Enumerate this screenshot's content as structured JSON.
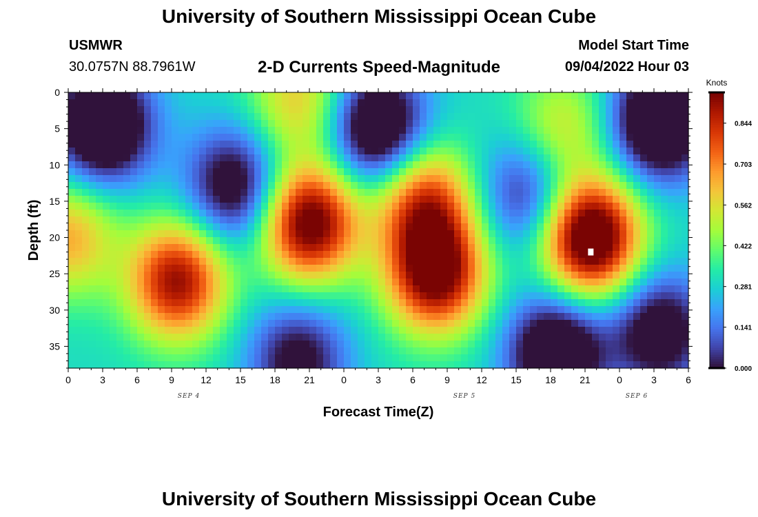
{
  "header": {
    "title": "University of Southern Mississippi Ocean Cube",
    "station_code": "USMWR",
    "station_coords": "30.0757N  88.7961W",
    "subtitle": "2-D Currents Speed-Magnitude",
    "model_start_label": "Model Start Time",
    "model_start_value": "09/04/2022 Hour 03"
  },
  "footer": {
    "title": "University of Southern Mississippi Ocean Cube"
  },
  "chart_data": {
    "type": "heatmap",
    "xlabel": "Forecast Time(Z)",
    "ylabel": "Depth (ft)",
    "x_tick_labels": [
      "0",
      "3",
      "6",
      "9",
      "12",
      "15",
      "18",
      "21",
      "0",
      "3",
      "6",
      "9",
      "12",
      "15",
      "18",
      "21",
      "0",
      "3",
      "6"
    ],
    "date_labels": [
      {
        "text": "SEP 4",
        "tick_index": 3.5
      },
      {
        "text": "SEP 5",
        "tick_index": 11.5
      },
      {
        "text": "SEP 6",
        "tick_index": 16.5
      }
    ],
    "y_ticks": [
      0,
      5,
      10,
      15,
      20,
      25,
      30,
      35
    ],
    "ylim": [
      0,
      38
    ],
    "x_range_hours": [
      0,
      54
    ],
    "colorbar": {
      "title": "Knots",
      "tick_labels": [
        "0.000",
        "0.141",
        "0.281",
        "0.422",
        "0.562",
        "0.703",
        "0.844"
      ],
      "range": [
        0,
        0.95
      ],
      "colors": [
        "#30123b",
        "#4145ab",
        "#4675ed",
        "#39a2fc",
        "#1bcfd4",
        "#24eca6",
        "#61fc6c",
        "#a4fc3b",
        "#d1e834",
        "#f3c63a",
        "#fe9b2d",
        "#f36315",
        "#d93806",
        "#b11901",
        "#7a0403"
      ]
    },
    "speed_blobs": [
      {
        "hour": 3,
        "depth": 4.5,
        "value": -0.55
      },
      {
        "hour": 9.5,
        "depth": 26,
        "value": 0.62
      },
      {
        "hour": 14.5,
        "depth": 13,
        "value": -0.4
      },
      {
        "hour": 21,
        "depth": 18,
        "value": 0.72
      },
      {
        "hour": 20,
        "depth": 1,
        "value": 0.3
      },
      {
        "hour": 27,
        "depth": 5,
        "value": -0.5
      },
      {
        "hour": 32,
        "depth": 25,
        "value": 0.7
      },
      {
        "hour": 31,
        "depth": 15,
        "value": 0.5
      },
      {
        "hour": 40,
        "depth": 14,
        "value": -0.3
      },
      {
        "hour": 43,
        "depth": 5,
        "value": 0.25
      },
      {
        "hour": 45.5,
        "depth": 20,
        "value": 0.82
      },
      {
        "hour": 42.5,
        "depth": 36,
        "value": -0.5
      },
      {
        "hour": 51.5,
        "depth": 4,
        "value": -0.55
      },
      {
        "hour": 51.5,
        "depth": 33,
        "value": -0.4
      },
      {
        "hour": 0,
        "depth": 20,
        "value": 0.35
      },
      {
        "hour": 20,
        "depth": 37,
        "value": -0.35
      }
    ],
    "base_speed": 0.3,
    "max_speed_marker": {
      "hour": 45.5,
      "depth": 22
    }
  }
}
